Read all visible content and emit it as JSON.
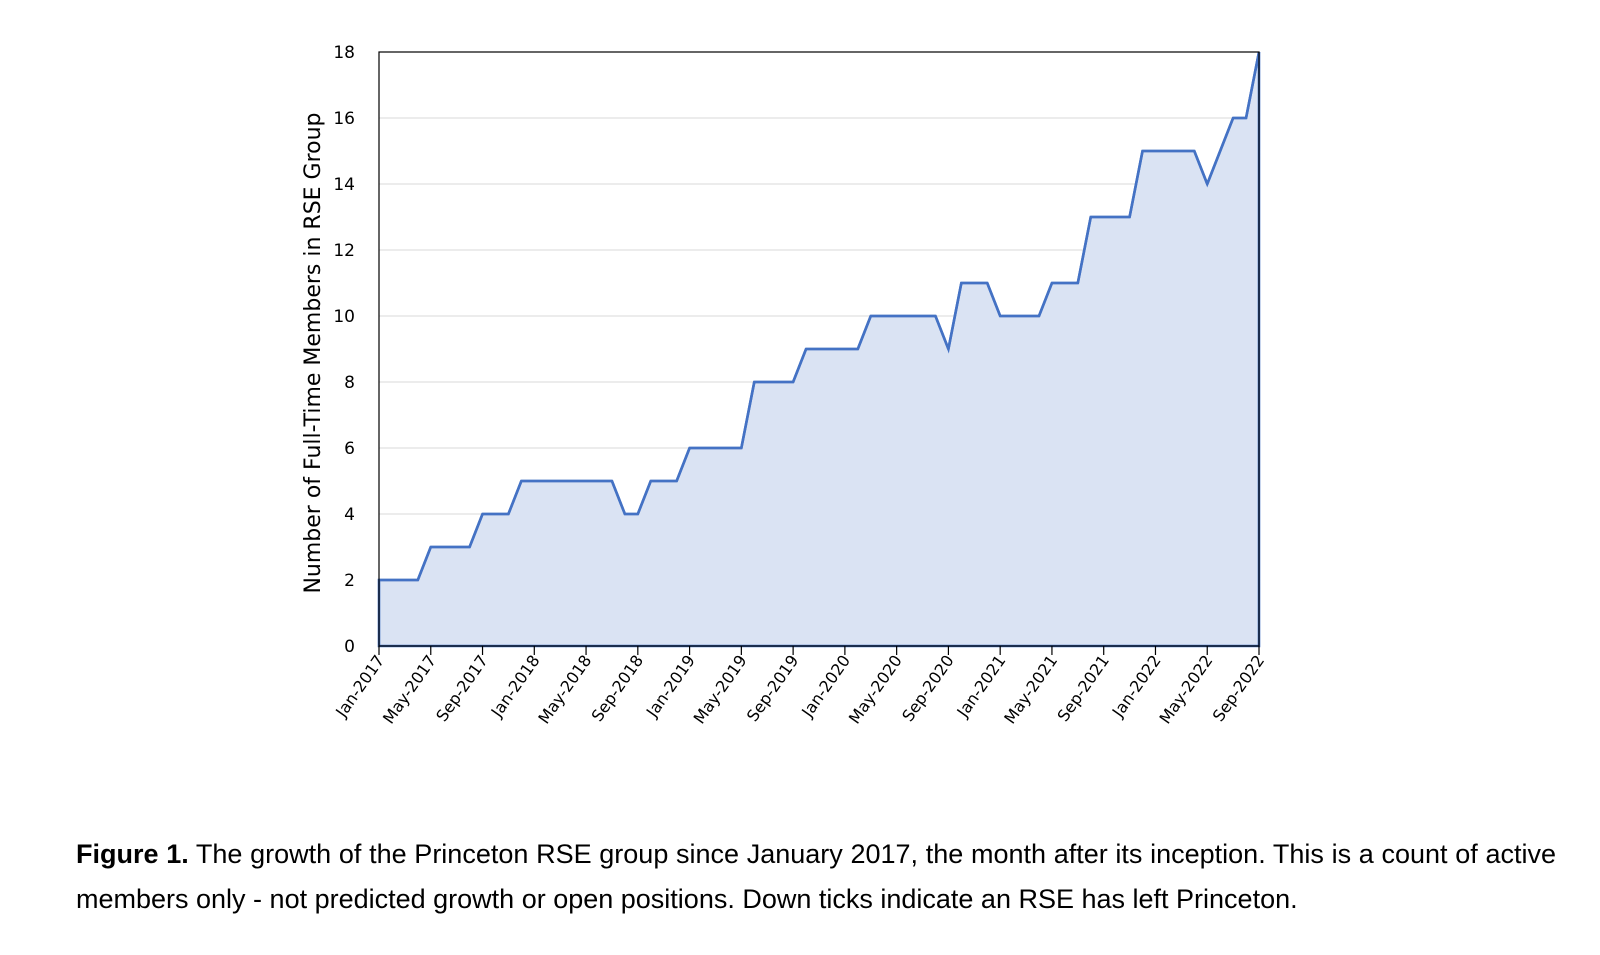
{
  "chart_data": {
    "type": "area",
    "title": "",
    "xlabel": "",
    "ylabel": "Number of Full-Time Members in RSE Group",
    "ylim": [
      0,
      18
    ],
    "yticks": [
      0,
      2,
      4,
      6,
      8,
      10,
      12,
      14,
      16,
      18
    ],
    "xtick_labels": [
      "Jan-2017",
      "May-2017",
      "Sep-2017",
      "Jan-2018",
      "May-2018",
      "Sep-2018",
      "Jan-2019",
      "May-2019",
      "Sep-2019",
      "Jan-2020",
      "May-2020",
      "Sep-2020",
      "Jan-2021",
      "May-2021",
      "Sep-2021",
      "Jan-2022",
      "May-2022",
      "Sep-2022"
    ],
    "grid": "horizontal",
    "legend": "none",
    "series": [
      {
        "color": "#4472c4",
        "fill": "#dae3f3",
        "x": [
          "2017-01",
          "2017-02",
          "2017-03",
          "2017-04",
          "2017-05",
          "2017-06",
          "2017-07",
          "2017-08",
          "2017-09",
          "2017-10",
          "2017-11",
          "2017-12",
          "2018-01",
          "2018-02",
          "2018-03",
          "2018-04",
          "2018-05",
          "2018-06",
          "2018-07",
          "2018-08",
          "2018-09",
          "2018-10",
          "2018-11",
          "2018-12",
          "2019-01",
          "2019-02",
          "2019-03",
          "2019-04",
          "2019-05",
          "2019-06",
          "2019-07",
          "2019-08",
          "2019-09",
          "2019-10",
          "2019-11",
          "2019-12",
          "2020-01",
          "2020-02",
          "2020-03",
          "2020-04",
          "2020-05",
          "2020-06",
          "2020-07",
          "2020-08",
          "2020-09",
          "2020-10",
          "2020-11",
          "2020-12",
          "2021-01",
          "2021-02",
          "2021-03",
          "2021-04",
          "2021-05",
          "2021-06",
          "2021-07",
          "2021-08",
          "2021-09",
          "2021-10",
          "2021-11",
          "2021-12",
          "2022-01",
          "2022-02",
          "2022-03",
          "2022-04",
          "2022-05",
          "2022-06",
          "2022-07",
          "2022-08",
          "2022-09"
        ],
        "values": [
          2,
          2,
          2,
          2,
          3,
          3,
          3,
          3,
          4,
          4,
          4,
          5,
          5,
          5,
          5,
          5,
          5,
          5,
          5,
          4,
          4,
          5,
          5,
          5,
          6,
          6,
          6,
          6,
          6,
          8,
          8,
          8,
          8,
          9,
          9,
          9,
          9,
          9,
          10,
          10,
          10,
          10,
          10,
          10,
          9,
          11,
          11,
          11,
          10,
          10,
          10,
          10,
          11,
          11,
          11,
          13,
          13,
          13,
          13,
          15,
          15,
          15,
          15,
          15,
          14,
          15,
          16,
          16,
          18
        ]
      }
    ]
  },
  "caption": {
    "label": "Figure 1.",
    "text": " The growth of the Princeton RSE group since January 2017, the month after its inception. This is a count of active members only - not predicted growth or open positions. Down ticks indicate an RSE has left Princeton."
  }
}
